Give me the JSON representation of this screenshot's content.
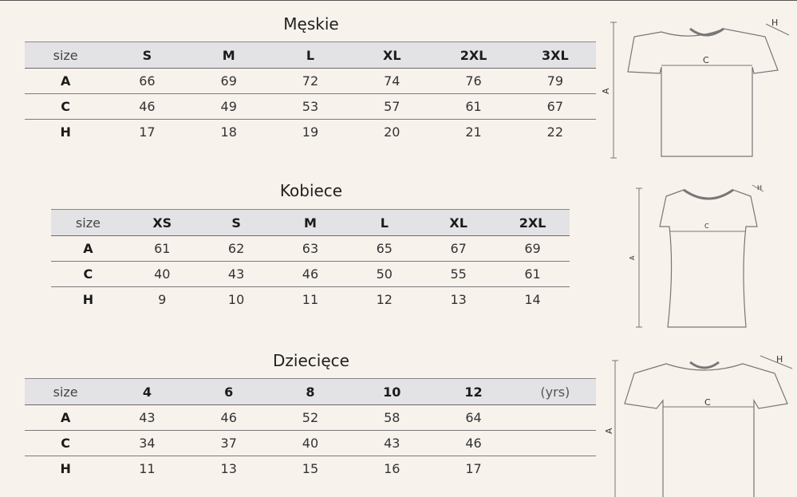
{
  "mens": {
    "title": "Męskie",
    "header": [
      "size",
      "S",
      "M",
      "L",
      "XL",
      "2XL",
      "3XL"
    ],
    "rows": [
      [
        "A",
        "66",
        "69",
        "72",
        "74",
        "76",
        "79"
      ],
      [
        "C",
        "46",
        "49",
        "53",
        "57",
        "61",
        "67"
      ],
      [
        "H",
        "17",
        "18",
        "19",
        "20",
        "21",
        "22"
      ]
    ]
  },
  "womens": {
    "title": "Kobiece",
    "header": [
      "size",
      "XS",
      "S",
      "M",
      "L",
      "XL",
      "2XL"
    ],
    "rows": [
      [
        "A",
        "61",
        "62",
        "63",
        "65",
        "67",
        "69"
      ],
      [
        "C",
        "40",
        "43",
        "46",
        "50",
        "55",
        "61"
      ],
      [
        "H",
        "9",
        "10",
        "11",
        "12",
        "13",
        "14"
      ]
    ]
  },
  "kids": {
    "title": "Dziecięce",
    "header": [
      "size",
      "4",
      "6",
      "8",
      "10",
      "12",
      "(yrs)"
    ],
    "rows": [
      [
        "A",
        "43",
        "46",
        "52",
        "58",
        "64",
        ""
      ],
      [
        "C",
        "34",
        "37",
        "40",
        "43",
        "46",
        ""
      ],
      [
        "H",
        "11",
        "13",
        "15",
        "16",
        "17",
        ""
      ]
    ]
  },
  "diagram_labels": {
    "a": "A",
    "c": "C",
    "h": "H"
  }
}
